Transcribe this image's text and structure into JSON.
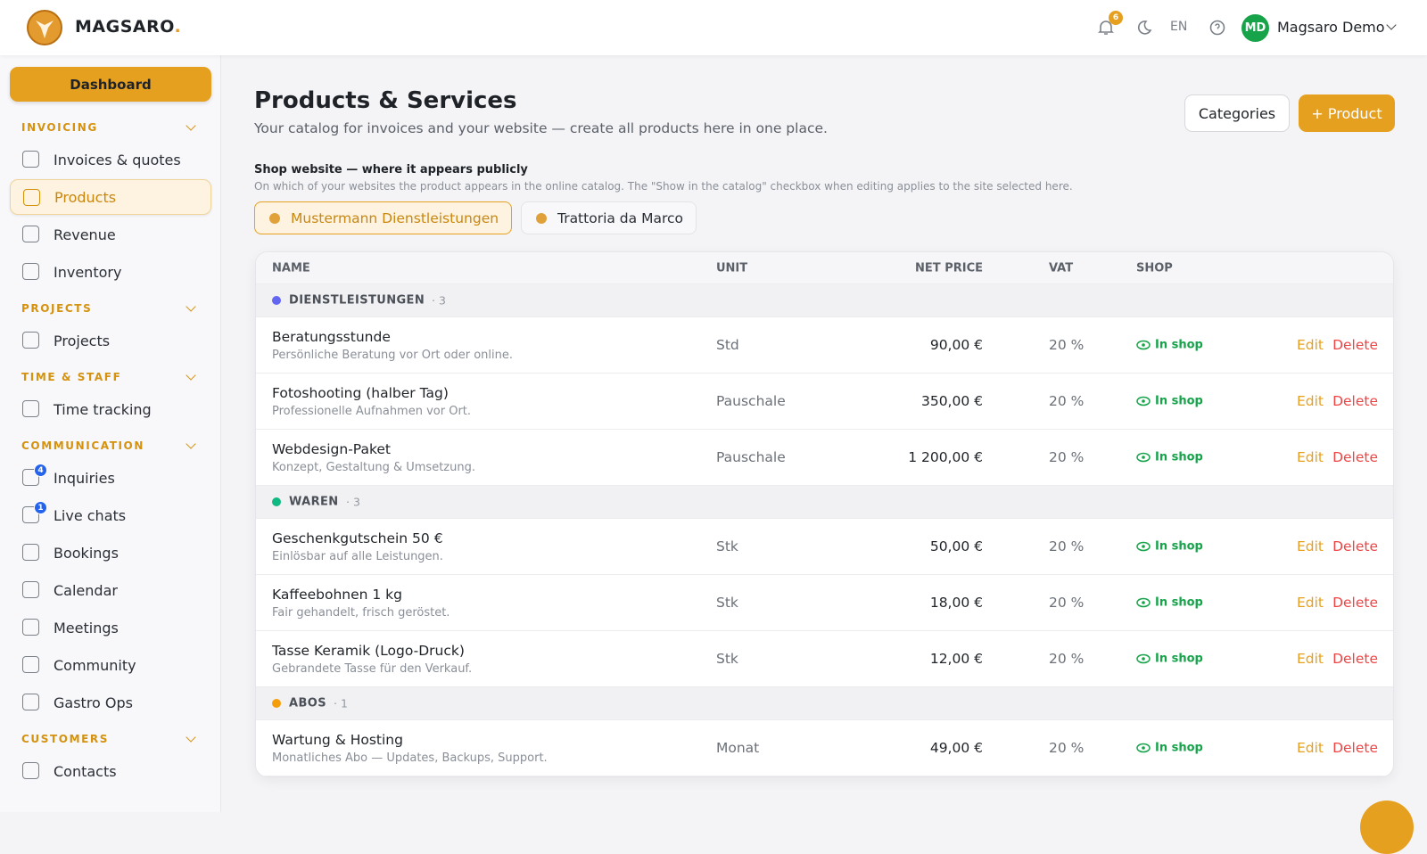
{
  "header": {
    "brand": "MAGSARO",
    "brand_dot": ".",
    "notification_count": 6,
    "language": "EN",
    "user_initials": "MD",
    "user_name": "Magsaro Demo"
  },
  "sidebar": {
    "dashboard": "Dashboard",
    "sections": [
      {
        "title": "INVOICING",
        "items": [
          {
            "label": "Invoices & quotes"
          },
          {
            "label": "Products",
            "active": true
          },
          {
            "label": "Revenue"
          },
          {
            "label": "Inventory"
          }
        ]
      },
      {
        "title": "PROJECTS",
        "items": [
          {
            "label": "Projects"
          }
        ]
      },
      {
        "title": "TIME & STAFF",
        "items": [
          {
            "label": "Time tracking"
          }
        ]
      },
      {
        "title": "COMMUNICATION",
        "items": [
          {
            "label": "Inquiries",
            "badge": 4
          },
          {
            "label": "Live chats",
            "badge": 1
          },
          {
            "label": "Bookings"
          },
          {
            "label": "Calendar"
          },
          {
            "label": "Meetings"
          },
          {
            "label": "Community"
          },
          {
            "label": "Gastro Ops"
          }
        ]
      },
      {
        "title": "CUSTOMERS",
        "items": [
          {
            "label": "Contacts"
          }
        ]
      }
    ]
  },
  "page": {
    "title": "Products & Services",
    "subtitle": "Your catalog for invoices and your website — create all products here in one place.",
    "categories_button": "Categories",
    "add_button": "+ Product"
  },
  "shop_website": {
    "label": "Shop website — where it appears publicly",
    "hint": "On which of your websites the product appears in the online catalog. The \"Show in the catalog\" checkbox when editing applies to the site selected here.",
    "sites": [
      {
        "name": "Mustermann Dienstleistungen",
        "selected": true
      },
      {
        "name": "Trattoria da Marco"
      }
    ]
  },
  "table": {
    "columns": [
      "NAME",
      "UNIT",
      "NET PRICE",
      "VAT",
      "SHOP"
    ],
    "in_shop_label": "In shop",
    "edit_label": "Edit",
    "delete_label": "Delete",
    "groups": [
      {
        "name": "DIENSTLEISTUNGEN",
        "count": 3,
        "color": "#6366f1",
        "rows": [
          {
            "name": "Beratungsstunde",
            "description": "Persönliche Beratung vor Ort oder online.",
            "unit": "Std",
            "price": "90,00 €",
            "vat": "20 %"
          },
          {
            "name": "Fotoshooting (halber Tag)",
            "description": "Professionelle Aufnahmen vor Ort.",
            "unit": "Pauschale",
            "price": "350,00 €",
            "vat": "20 %"
          },
          {
            "name": "Webdesign-Paket",
            "description": "Konzept, Gestaltung & Umsetzung.",
            "unit": "Pauschale",
            "price": "1 200,00 €",
            "vat": "20 %"
          }
        ]
      },
      {
        "name": "WAREN",
        "count": 3,
        "color": "#10b981",
        "rows": [
          {
            "name": "Geschenkgutschein 50 €",
            "description": "Einlösbar auf alle Leistungen.",
            "unit": "Stk",
            "price": "50,00 €",
            "vat": "20 %"
          },
          {
            "name": "Kaffeebohnen 1 kg",
            "description": "Fair gehandelt, frisch geröstet.",
            "unit": "Stk",
            "price": "18,00 €",
            "vat": "20 %"
          },
          {
            "name": "Tasse Keramik (Logo-Druck)",
            "description": "Gebrandete Tasse für den Verkauf.",
            "unit": "Stk",
            "price": "12,00 €",
            "vat": "20 %"
          }
        ]
      },
      {
        "name": "ABOS",
        "count": 1,
        "color": "#f59e0b",
        "rows": [
          {
            "name": "Wartung & Hosting",
            "description": "Monatliches Abo — Updates, Backups, Support.",
            "unit": "Monat",
            "price": "49,00 €",
            "vat": "20 %"
          }
        ]
      }
    ]
  }
}
